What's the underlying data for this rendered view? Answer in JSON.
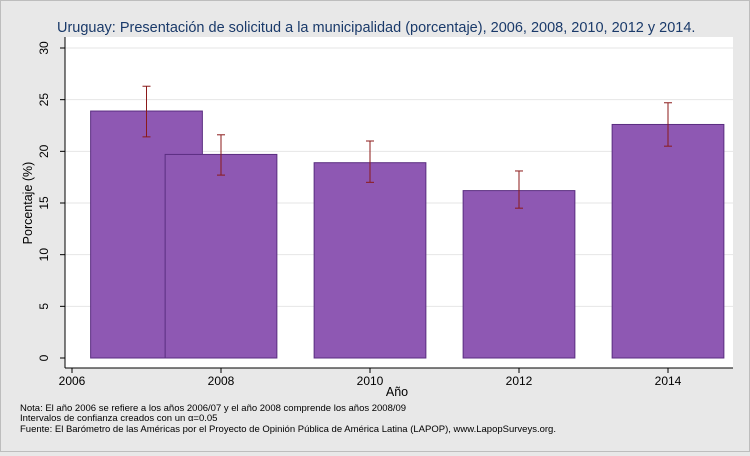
{
  "chart_data": {
    "type": "bar",
    "title": "Uruguay: Presentación de solicitud a la municipalidad (porcentaje), 2006, 2008, 2010, 2012 y 2014.",
    "xlabel": "Año",
    "ylabel": "Porcentaje (%)",
    "xlim": [
      2006,
      2015
    ],
    "ylim": [
      0,
      30
    ],
    "xticks": [
      "2006",
      "2008",
      "2010",
      "2012",
      "2014"
    ],
    "yticks": [
      "0",
      "5",
      "10",
      "15",
      "20",
      "25",
      "30"
    ],
    "grid": "horizontal",
    "bar_color": "#8e58b3",
    "errorbar_color": "#8b1a1a",
    "bars": [
      {
        "x_start": 2006.25,
        "x_end": 2007.75,
        "value": 23.9,
        "ci_low": 21.4,
        "ci_high": 26.3
      },
      {
        "x_start": 2007.25,
        "x_end": 2008.75,
        "value": 19.7,
        "ci_low": 17.7,
        "ci_high": 21.6
      },
      {
        "x_start": 2009.25,
        "x_end": 2010.75,
        "value": 18.9,
        "ci_low": 17.0,
        "ci_high": 21.0
      },
      {
        "x_start": 2011.25,
        "x_end": 2012.75,
        "value": 16.2,
        "ci_low": 14.5,
        "ci_high": 18.1
      },
      {
        "x_start": 2013.25,
        "x_end": 2014.75,
        "value": 22.6,
        "ci_low": 20.5,
        "ci_high": 24.7
      }
    ]
  },
  "notes": [
    "Nota: El año 2006 se refiere a los años 2006/07 y el año 2008 comprende los años 2008/09",
    "Intervalos de confianza creados con un α=0.05",
    "Fuente: El Barómetro de las Américas por el Proyecto de Opinión Pública de América Latina (LAPOP), www.LapopSurveys.org."
  ]
}
